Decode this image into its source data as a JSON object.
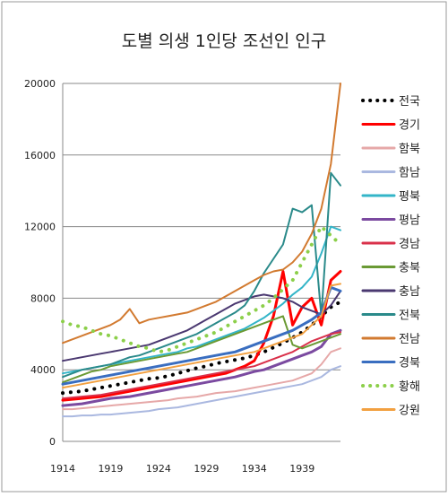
{
  "chart_data": {
    "type": "line",
    "title": "도별 의생 1인당 조선인 인구",
    "xlabel": "",
    "ylabel": "",
    "xlim": [
      1914,
      1943
    ],
    "ylim": [
      0,
      20000
    ],
    "x_ticks": [
      1914,
      1919,
      1924,
      1929,
      1934,
      1939
    ],
    "y_ticks": [
      0,
      4000,
      8000,
      12000,
      16000,
      20000
    ],
    "grid": "horizontal",
    "legend_position": "right",
    "x": [
      1914,
      1915,
      1916,
      1917,
      1918,
      1919,
      1920,
      1921,
      1922,
      1923,
      1924,
      1925,
      1926,
      1927,
      1928,
      1929,
      1930,
      1931,
      1932,
      1933,
      1934,
      1935,
      1936,
      1937,
      1938,
      1939,
      1940,
      1941,
      1942,
      1943
    ],
    "series": [
      {
        "name": "전국",
        "color": "#000000",
        "dash": "dot",
        "width": 4,
        "values": [
          2700,
          2750,
          2800,
          2900,
          3000,
          3100,
          3200,
          3300,
          3400,
          3500,
          3550,
          3650,
          3800,
          3950,
          4100,
          4200,
          4350,
          4450,
          4550,
          4650,
          4800,
          5000,
          5250,
          5500,
          5800,
          6100,
          6500,
          7000,
          7500,
          7800
        ]
      },
      {
        "name": "경기",
        "color": "#ff0000",
        "dash": "solid",
        "width": 3,
        "values": [
          2300,
          2350,
          2400,
          2450,
          2500,
          2600,
          2700,
          2800,
          2900,
          3000,
          3100,
          3200,
          3300,
          3400,
          3500,
          3600,
          3700,
          3800,
          4000,
          4200,
          4500,
          5500,
          7000,
          9500,
          6500,
          7500,
          8000,
          6500,
          9000,
          9500
        ]
      },
      {
        "name": "함북",
        "color": "#e6a8a8",
        "dash": "solid",
        "width": 2,
        "values": [
          1800,
          1800,
          1850,
          1900,
          1950,
          2000,
          2050,
          2100,
          2150,
          2200,
          2250,
          2300,
          2400,
          2450,
          2500,
          2600,
          2700,
          2750,
          2800,
          2900,
          3000,
          3100,
          3200,
          3300,
          3400,
          3600,
          3800,
          4300,
          5000,
          5200
        ]
      },
      {
        "name": "함남",
        "color": "#aab8e0",
        "dash": "solid",
        "width": 2,
        "values": [
          1400,
          1400,
          1450,
          1450,
          1500,
          1500,
          1550,
          1600,
          1650,
          1700,
          1800,
          1850,
          1900,
          2000,
          2100,
          2200,
          2300,
          2400,
          2500,
          2600,
          2700,
          2800,
          2900,
          3000,
          3100,
          3200,
          3400,
          3600,
          4000,
          4200
        ]
      },
      {
        "name": "평북",
        "color": "#33b5c8",
        "dash": "solid",
        "width": 2,
        "values": [
          3800,
          3900,
          4000,
          4100,
          4200,
          4300,
          4400,
          4500,
          4600,
          4700,
          4800,
          4900,
          5000,
          5200,
          5300,
          5500,
          5700,
          5900,
          6100,
          6300,
          6600,
          6900,
          7300,
          7700,
          8200,
          8600,
          9200,
          10500,
          12000,
          11800
        ]
      },
      {
        "name": "평남",
        "color": "#7b4aa0",
        "dash": "solid",
        "width": 3,
        "values": [
          2000,
          2050,
          2100,
          2200,
          2300,
          2400,
          2450,
          2500,
          2600,
          2700,
          2800,
          2900,
          3000,
          3100,
          3200,
          3300,
          3400,
          3500,
          3600,
          3750,
          3900,
          4000,
          4200,
          4400,
          4600,
          4800,
          5000,
          5300,
          6000,
          6200
        ]
      },
      {
        "name": "경남",
        "color": "#d9304a",
        "dash": "solid",
        "width": 2,
        "values": [
          2400,
          2450,
          2500,
          2550,
          2600,
          2700,
          2800,
          2900,
          3000,
          3100,
          3200,
          3300,
          3400,
          3500,
          3600,
          3700,
          3800,
          3900,
          4000,
          4100,
          4200,
          4400,
          4600,
          4800,
          5000,
          5300,
          5600,
          5800,
          6000,
          6100
        ]
      },
      {
        "name": "충북",
        "color": "#6a9a34",
        "dash": "solid",
        "width": 2,
        "values": [
          3300,
          3500,
          3700,
          3900,
          4000,
          4200,
          4300,
          4400,
          4500,
          4600,
          4700,
          4800,
          4900,
          5000,
          5200,
          5400,
          5600,
          5800,
          6000,
          6200,
          6400,
          6600,
          6800,
          7000,
          5400,
          5200,
          5400,
          5600,
          5800,
          6000
        ]
      },
      {
        "name": "충남",
        "color": "#4a3870",
        "dash": "solid",
        "width": 2,
        "values": [
          4500,
          4600,
          4700,
          4800,
          4900,
          5000,
          5100,
          5200,
          5300,
          5400,
          5600,
          5800,
          6000,
          6200,
          6500,
          6800,
          7100,
          7400,
          7700,
          7900,
          8100,
          8200,
          8100,
          8000,
          7800,
          7500,
          7300,
          7100,
          7600,
          8400
        ]
      },
      {
        "name": "전북",
        "color": "#2a8a8a",
        "dash": "solid",
        "width": 2,
        "values": [
          3600,
          3800,
          4000,
          4100,
          4200,
          4300,
          4500,
          4700,
          4800,
          5000,
          5200,
          5400,
          5600,
          5800,
          6000,
          6300,
          6600,
          6900,
          7200,
          7600,
          8400,
          9400,
          10200,
          11000,
          13000,
          12800,
          13200,
          7000,
          15000,
          14300
        ]
      },
      {
        "name": "전남",
        "color": "#d27a30",
        "dash": "solid",
        "width": 2,
        "values": [
          5500,
          5700,
          5900,
          6100,
          6300,
          6500,
          6800,
          7400,
          6600,
          6800,
          6900,
          7000,
          7100,
          7200,
          7400,
          7600,
          7800,
          8100,
          8400,
          8700,
          9000,
          9300,
          9500,
          9600,
          10000,
          10600,
          11600,
          13000,
          15500,
          20000
        ]
      },
      {
        "name": "경북",
        "color": "#3a6ec0",
        "dash": "solid",
        "width": 3,
        "values": [
          3200,
          3300,
          3400,
          3500,
          3600,
          3700,
          3800,
          3900,
          4000,
          4100,
          4200,
          4300,
          4400,
          4500,
          4600,
          4700,
          4800,
          4900,
          5000,
          5200,
          5400,
          5600,
          5800,
          6000,
          6200,
          6500,
          6800,
          7200,
          8600,
          8400
        ]
      },
      {
        "name": "황해",
        "color": "#8ccf4a",
        "dash": "dot",
        "width": 4,
        "values": [
          6700,
          6500,
          6400,
          6200,
          6000,
          5900,
          5700,
          5500,
          5300,
          5200,
          5000,
          5100,
          5300,
          5500,
          5700,
          5900,
          6100,
          6400,
          6700,
          7000,
          7300,
          7600,
          8000,
          8500,
          9000,
          10000,
          11000,
          12000,
          11500,
          11000
        ]
      },
      {
        "name": "강원",
        "color": "#f2a040",
        "dash": "solid",
        "width": 2,
        "values": [
          3000,
          3100,
          3200,
          3300,
          3400,
          3500,
          3600,
          3700,
          3800,
          3900,
          4000,
          4100,
          4200,
          4300,
          4400,
          4500,
          4600,
          4700,
          4800,
          4900,
          5000,
          5200,
          5400,
          5600,
          5800,
          6000,
          6500,
          7000,
          8700,
          8800
        ]
      }
    ]
  }
}
